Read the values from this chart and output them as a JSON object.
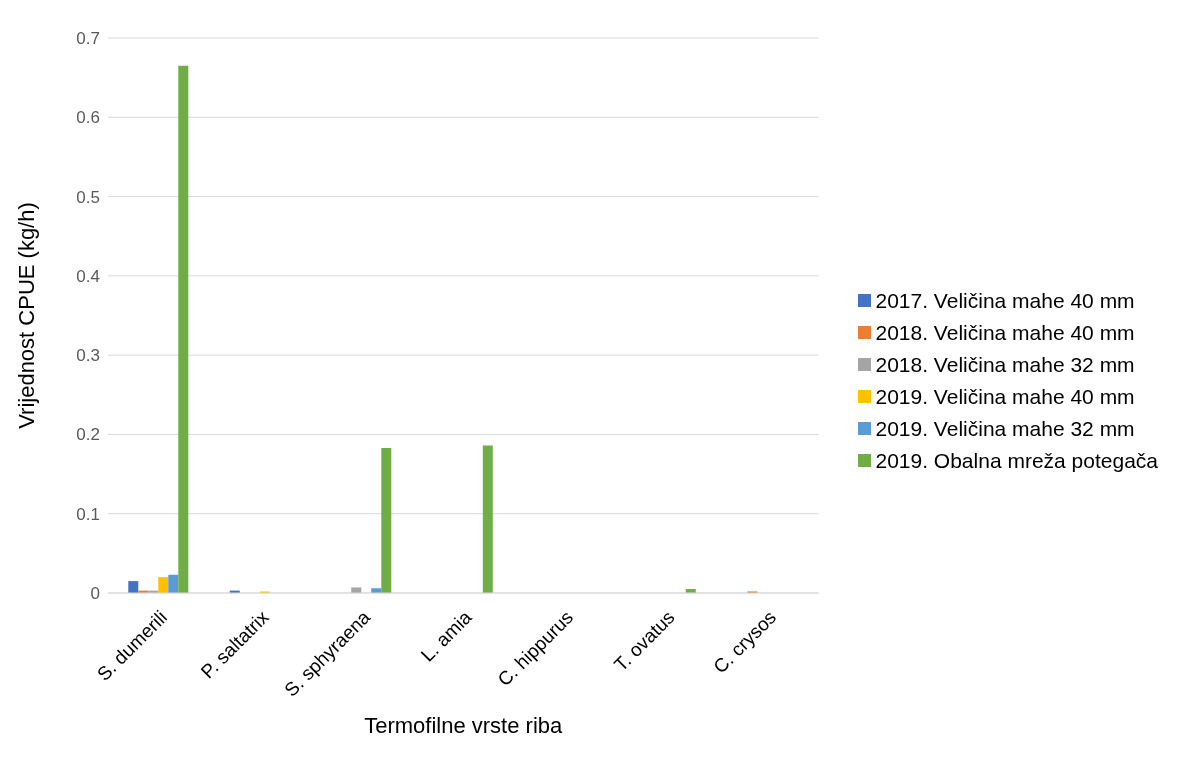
{
  "chart_data": {
    "type": "bar",
    "xlabel": "Termofilne vrste riba",
    "ylabel": "Vrijednost CPUE (kg/h)",
    "categories": [
      "S. dumerili",
      "P. saltatrix",
      "S. sphyraena",
      "L. amia",
      "C. hippurus",
      "T. ovatus",
      "C. crysos"
    ],
    "series": [
      {
        "name": "2017. Veličina mahe 40 mm",
        "color": "#4472c4",
        "values": [
          0.015,
          0.003,
          0,
          0,
          0,
          0,
          0
        ]
      },
      {
        "name": "2018. Veličina mahe 40 mm",
        "color": "#ed7d31",
        "values": [
          0.003,
          0,
          0,
          0,
          0,
          0,
          0.002
        ]
      },
      {
        "name": "2018. Veličina mahe 32 mm",
        "color": "#a5a5a5",
        "values": [
          0.003,
          0,
          0.007,
          0,
          0,
          0,
          0
        ]
      },
      {
        "name": "2019. Veličina mahe 40 mm",
        "color": "#ffc000",
        "values": [
          0.02,
          0.002,
          0,
          0,
          0,
          0,
          0
        ]
      },
      {
        "name": "2019. Veličina mahe 32 mm",
        "color": "#5b9bd5",
        "values": [
          0.023,
          0,
          0.006,
          0,
          0,
          0,
          0
        ]
      },
      {
        "name": "2019. Obalna mreža potegača",
        "color": "#70ad47",
        "values": [
          0.665,
          0,
          0.183,
          0.186,
          0,
          0.005,
          0
        ]
      }
    ],
    "ylim": [
      0,
      0.7
    ],
    "yticks": [
      0,
      0.1,
      0.2,
      0.3,
      0.4,
      0.5,
      0.6,
      0.7
    ],
    "grid": "y",
    "legend": "right"
  }
}
